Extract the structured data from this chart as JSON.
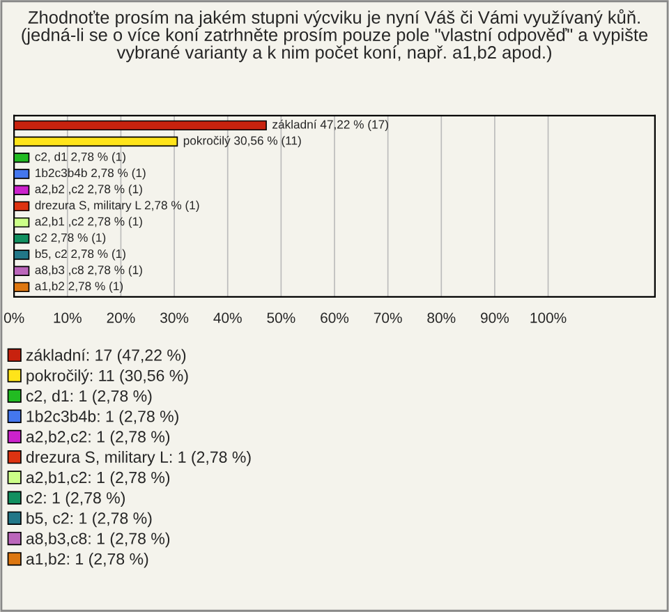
{
  "chart_data": {
    "type": "bar",
    "orientation": "horizontal",
    "title": "Zhodnoťte prosím na jakém stupni výcviku je nyní Váš či Vámi využívaný kůň. (jedná-li se o více koní zatrhněte prosím pouze pole \"vlastní odpověď\" a vypište vybrané varianty a k nim počet koní, např. a1,b2 apod.)",
    "categories": [
      null,
      null,
      null,
      null,
      null,
      null,
      null,
      null,
      null,
      null,
      null
    ],
    "series": [
      {
        "name": "základní: 17 (47,22 %)",
        "color": "#c8220e",
        "values": [
          47.22,
          null,
          null,
          null,
          null,
          null,
          null,
          null,
          null,
          null,
          null
        ],
        "value_labels": [
          "základní 47,22 % (17)",
          null,
          null,
          null,
          null,
          null,
          null,
          null,
          null,
          null,
          null
        ]
      },
      {
        "name": "pokročilý: 11 (30,56 %)",
        "color": "#ffe41a",
        "values": [
          null,
          30.56,
          null,
          null,
          null,
          null,
          null,
          null,
          null,
          null,
          null
        ],
        "value_labels": [
          null,
          "pokročilý 30,56 % (11)",
          null,
          null,
          null,
          null,
          null,
          null,
          null,
          null,
          null
        ]
      },
      {
        "name": "c2, d1: 1 (2,78 %)",
        "color": "#22bb22",
        "values": [
          null,
          null,
          2.78,
          null,
          null,
          null,
          null,
          null,
          null,
          null,
          null
        ],
        "value_labels": [
          null,
          null,
          "c2, d1 2,78 % (1)",
          null,
          null,
          null,
          null,
          null,
          null,
          null,
          null
        ]
      },
      {
        "name": "1b2c3b4b: 1 (2,78 %)",
        "color": "#4477ee",
        "values": [
          null,
          null,
          null,
          2.78,
          null,
          null,
          null,
          null,
          null,
          null,
          null
        ],
        "value_labels": [
          null,
          null,
          null,
          "1b2c3b4b 2,78 % (1)",
          null,
          null,
          null,
          null,
          null,
          null,
          null
        ]
      },
      {
        "name": "a2,b2,c2: 1 (2,78 %)",
        "color": "#cc22cc",
        "values": [
          null,
          null,
          null,
          null,
          2.78,
          null,
          null,
          null,
          null,
          null,
          null
        ],
        "value_labels": [
          null,
          null,
          null,
          null,
          "a2,b2 ,c2 2,78 % (1)",
          null,
          null,
          null,
          null,
          null,
          null
        ]
      },
      {
        "name": "drezura S, military L: 1 (2,78 %)",
        "color": "#dd3311",
        "values": [
          null,
          null,
          null,
          null,
          null,
          2.78,
          null,
          null,
          null,
          null,
          null
        ],
        "value_labels": [
          null,
          null,
          null,
          null,
          null,
          "drezura S, military L 2,78 % (1)",
          null,
          null,
          null,
          null,
          null
        ]
      },
      {
        "name": "a2,b1,c2: 1 (2,78 %)",
        "color": "#ccff88",
        "values": [
          null,
          null,
          null,
          null,
          null,
          null,
          2.78,
          null,
          null,
          null,
          null
        ],
        "value_labels": [
          null,
          null,
          null,
          null,
          null,
          null,
          "a2,b1 ,c2 2,78 % (1)",
          null,
          null,
          null,
          null
        ]
      },
      {
        "name": "c2: 1 (2,78 %)",
        "color": "#119060",
        "values": [
          null,
          null,
          null,
          null,
          null,
          null,
          null,
          2.78,
          null,
          null,
          null
        ],
        "value_labels": [
          null,
          null,
          null,
          null,
          null,
          null,
          null,
          "c2 2,78 % (1)",
          null,
          null,
          null
        ]
      },
      {
        "name": "b5, c2: 1 (2,78 %)",
        "color": "#227788",
        "values": [
          null,
          null,
          null,
          null,
          null,
          null,
          null,
          null,
          2.78,
          null,
          null
        ],
        "value_labels": [
          null,
          null,
          null,
          null,
          null,
          null,
          null,
          null,
          "b5, c2 2,78 % (1)",
          null,
          null
        ]
      },
      {
        "name": "a8,b3,c8: 1 (2,78 %)",
        "color": "#bb66bb",
        "values": [
          null,
          null,
          null,
          null,
          null,
          null,
          null,
          null,
          null,
          2.78,
          null
        ],
        "value_labels": [
          null,
          null,
          null,
          null,
          null,
          null,
          null,
          null,
          null,
          "a8,b3 ,c8 2,78 % (1)",
          null
        ]
      },
      {
        "name": "a1,b2: 1 (2,78 %)",
        "color": "#dd7711",
        "values": [
          null,
          null,
          null,
          null,
          null,
          null,
          null,
          null,
          null,
          null,
          2.78
        ],
        "value_labels": [
          null,
          null,
          null,
          null,
          null,
          null,
          null,
          null,
          null,
          null,
          "a1,b2 2,78 % (1)"
        ]
      }
    ],
    "xlim": [
      0,
      120
    ],
    "xticks": [
      {
        "value": 0,
        "label": "0%"
      },
      {
        "value": 10,
        "label": "10%"
      },
      {
        "value": 20,
        "label": "20%"
      },
      {
        "value": 30,
        "label": "30%"
      },
      {
        "value": 40,
        "label": "40%"
      },
      {
        "value": 50,
        "label": "50%"
      },
      {
        "value": 60,
        "label": "60%"
      },
      {
        "value": 70,
        "label": "70%"
      },
      {
        "value": 80,
        "label": "80%"
      },
      {
        "value": 90,
        "label": "90%"
      },
      {
        "value": 100,
        "label": "100%"
      }
    ],
    "grid": "x",
    "legend": "bottom",
    "tick_labels": "x"
  }
}
